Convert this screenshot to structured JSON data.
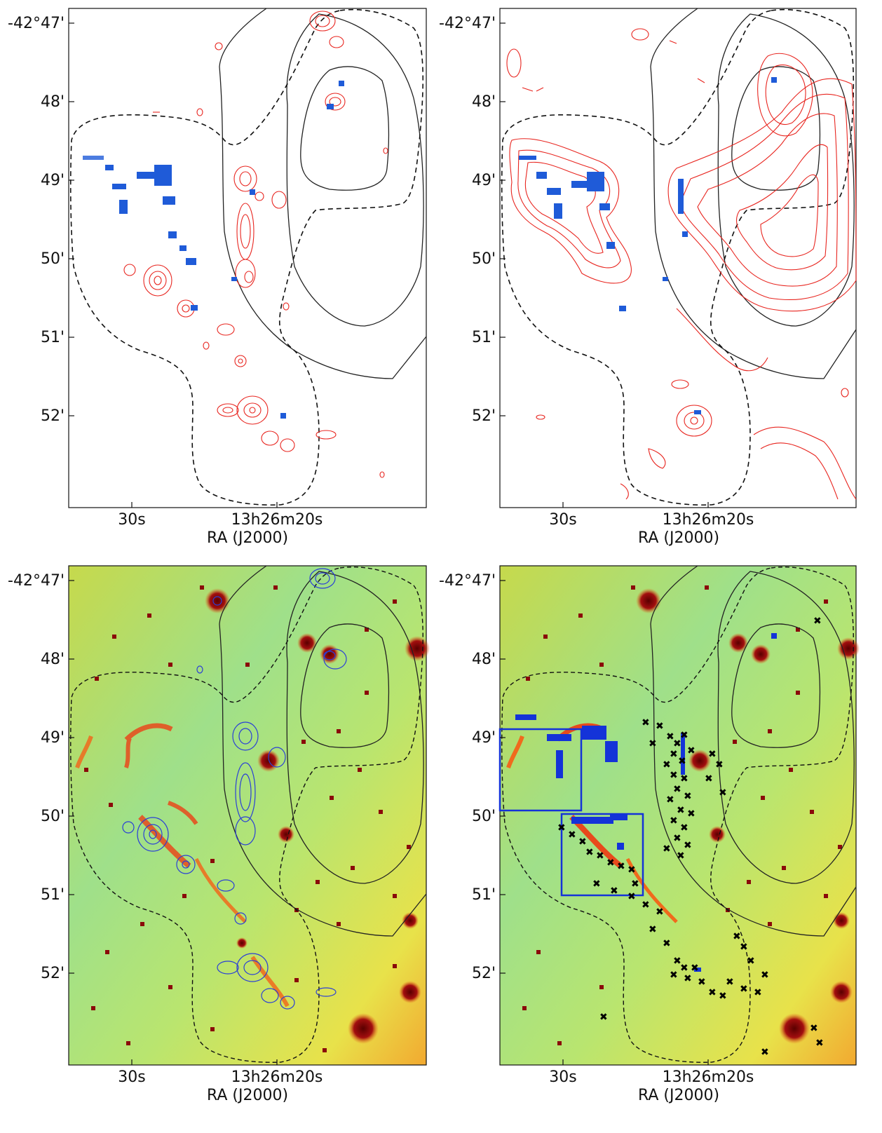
{
  "figure": {
    "panels": [
      {
        "id": "top-left",
        "background": "white",
        "overlay_contours": "red",
        "x_ticks": [
          "30s",
          "13h26m20s"
        ],
        "y_ticks": [
          "-42°47'",
          "48'",
          "49'",
          "50'",
          "51'",
          "52'"
        ],
        "x_axis_title": "RA (J2000)"
      },
      {
        "id": "top-right",
        "background": "white",
        "overlay_contours": "red",
        "x_ticks": [
          "30s",
          "13h26m20s"
        ],
        "y_ticks": [
          "-42°47'",
          "48'",
          "49'",
          "50'",
          "51'",
          "52'"
        ],
        "x_axis_title": "RA (J2000)"
      },
      {
        "id": "bottom-left",
        "background": "optical-image",
        "overlay_contours": "blue",
        "x_ticks": [
          "30s",
          "13h26m20s"
        ],
        "y_ticks": [
          "-42°47'",
          "48'",
          "49'",
          "50'",
          "51'",
          "52'"
        ],
        "x_axis_title": "RA (J2000)"
      },
      {
        "id": "bottom-right",
        "background": "optical-image",
        "overlay_contours": "black-crosses",
        "x_ticks": [
          "30s",
          "13h26m20s"
        ],
        "y_ticks": [
          "-42°47'",
          "48'",
          "49'",
          "50'",
          "51'",
          "52'"
        ],
        "x_axis_title": "RA (J2000)"
      }
    ],
    "colors": {
      "contour_red": "#e8251f",
      "contour_blue": "#2a3fd6",
      "contour_black": "#222222",
      "box_blue": "#1433d8",
      "image_base": "#b8e86a",
      "image_hot": "#f06a1c",
      "star": "#8a0a0a"
    }
  }
}
